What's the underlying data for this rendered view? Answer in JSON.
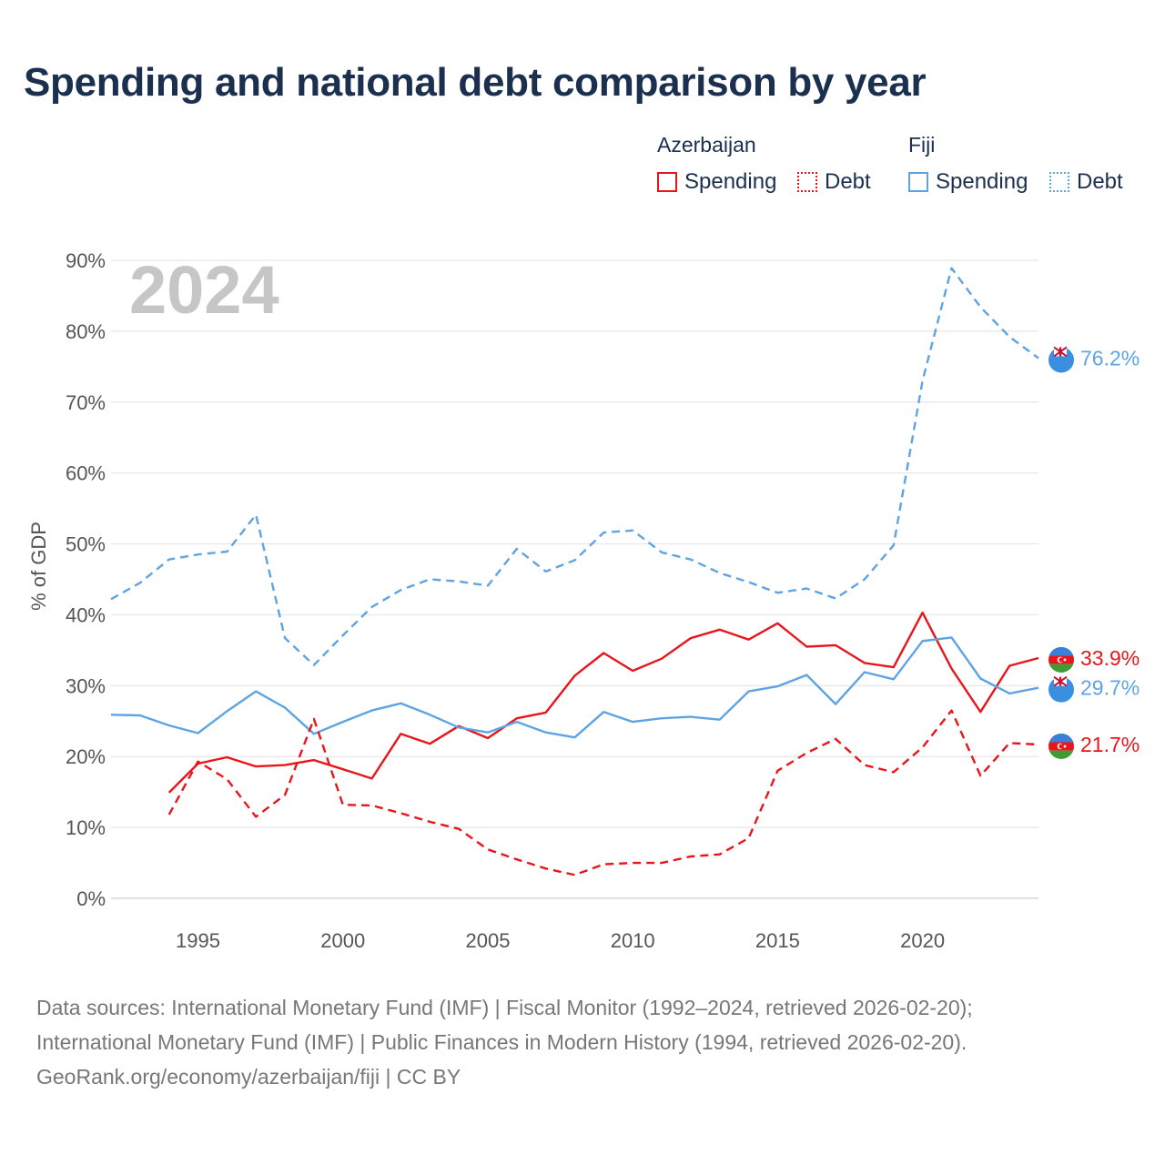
{
  "chart_data": {
    "type": "line",
    "title": "Spending and national debt comparison by year",
    "year_label": "2024",
    "ylabel": "% of GDP",
    "xlabel": "",
    "xlim": [
      1992,
      2024
    ],
    "ylim": [
      0,
      90
    ],
    "x_ticks": [
      1995,
      2000,
      2005,
      2010,
      2015,
      2020
    ],
    "y_ticks": [
      0,
      10,
      20,
      30,
      40,
      50,
      60,
      70,
      80,
      90
    ],
    "y_tick_labels": [
      "0%",
      "10%",
      "20%",
      "30%",
      "40%",
      "50%",
      "60%",
      "70%",
      "80%",
      "90%"
    ],
    "grid": true,
    "legend_groups": [
      {
        "country": "Azerbaijan",
        "color": "#e8161b",
        "items": [
          "Spending",
          "Debt"
        ]
      },
      {
        "country": "Fiji",
        "color": "#5ea4e2",
        "items": [
          "Spending",
          "Debt"
        ]
      }
    ],
    "series": [
      {
        "name": "Fiji Debt",
        "country": "Fiji",
        "measure": "Debt",
        "style": "dashed",
        "color": "#5ea4e2",
        "x": [
          1992,
          1993,
          1994,
          1995,
          1996,
          1997,
          1998,
          1999,
          2000,
          2001,
          2002,
          2003,
          2004,
          2005,
          2006,
          2007,
          2008,
          2009,
          2010,
          2011,
          2012,
          2013,
          2014,
          2015,
          2016,
          2017,
          2018,
          2019,
          2020,
          2021,
          2022,
          2023,
          2024
        ],
        "values": [
          42.2,
          44.5,
          47.8,
          48.5,
          48.9,
          54.1,
          36.7,
          32.9,
          37.1,
          41.1,
          43.5,
          45.0,
          44.7,
          44.1,
          49.3,
          46.1,
          47.7,
          51.6,
          51.9,
          48.8,
          47.8,
          45.9,
          44.6,
          43.1,
          43.7,
          42.3,
          45.0,
          49.8,
          73.0,
          88.9,
          83.4,
          79.2,
          76.2
        ],
        "end_label": "76.2%"
      },
      {
        "name": "Azerbaijan Spending",
        "country": "Azerbaijan",
        "measure": "Spending",
        "style": "solid",
        "color": "#e8161b",
        "x": [
          1994,
          1995,
          1996,
          1997,
          1998,
          1999,
          2000,
          2001,
          2002,
          2003,
          2004,
          2005,
          2006,
          2007,
          2008,
          2009,
          2010,
          2011,
          2012,
          2013,
          2014,
          2015,
          2016,
          2017,
          2018,
          2019,
          2020,
          2021,
          2022,
          2023,
          2024
        ],
        "values": [
          14.9,
          19.0,
          19.9,
          18.6,
          18.8,
          19.5,
          18.2,
          16.9,
          23.2,
          21.8,
          24.3,
          22.6,
          25.4,
          26.2,
          31.4,
          34.6,
          32.1,
          33.8,
          36.7,
          37.9,
          36.5,
          38.8,
          35.5,
          35.7,
          33.2,
          32.6,
          40.3,
          32.4,
          26.3,
          32.8,
          33.9
        ],
        "end_label": "33.9%"
      },
      {
        "name": "Fiji Spending",
        "country": "Fiji",
        "measure": "Spending",
        "style": "solid",
        "color": "#5ea4e2",
        "x": [
          1992,
          1993,
          1994,
          1995,
          1996,
          1997,
          1998,
          1999,
          2000,
          2001,
          2002,
          2003,
          2004,
          2005,
          2006,
          2007,
          2008,
          2009,
          2010,
          2011,
          2012,
          2013,
          2014,
          2015,
          2016,
          2017,
          2018,
          2019,
          2020,
          2021,
          2022,
          2023,
          2024
        ],
        "values": [
          25.9,
          25.8,
          24.4,
          23.3,
          26.4,
          29.2,
          26.9,
          23.2,
          24.9,
          26.5,
          27.5,
          25.9,
          24.1,
          23.4,
          24.9,
          23.4,
          22.7,
          26.3,
          24.9,
          25.4,
          25.6,
          25.2,
          29.2,
          29.9,
          31.5,
          27.4,
          31.9,
          30.9,
          36.3,
          36.8,
          31.0,
          28.9,
          29.7
        ],
        "end_label": "29.7%"
      },
      {
        "name": "Azerbaijan Debt",
        "country": "Azerbaijan",
        "measure": "Debt",
        "style": "dashed",
        "color": "#e8161b",
        "x": [
          1994,
          1995,
          1996,
          1997,
          1998,
          1999,
          2000,
          2001,
          2002,
          2003,
          2004,
          2005,
          2006,
          2007,
          2008,
          2009,
          2010,
          2011,
          2012,
          2013,
          2014,
          2015,
          2016,
          2017,
          2018,
          2019,
          2020,
          2021,
          2022,
          2023,
          2024
        ],
        "values": [
          11.8,
          19.3,
          16.8,
          11.5,
          14.6,
          25.3,
          13.2,
          13.1,
          12.0,
          10.8,
          9.8,
          6.9,
          5.5,
          4.2,
          3.3,
          4.8,
          5.0,
          5.0,
          5.9,
          6.2,
          8.5,
          18.0,
          20.5,
          22.5,
          18.8,
          17.8,
          21.3,
          26.5,
          17.3,
          21.9,
          21.7
        ],
        "end_label": "21.7%"
      }
    ]
  },
  "footer": {
    "line1": "Data sources: International Monetary Fund (IMF) | Fiscal Monitor (1992–2024, retrieved 2026-02-20);",
    "line2": "International Monetary Fund (IMF) | Public Finances in Modern History (1994, retrieved 2026-02-20).",
    "line3": "GeoRank.org/economy/azerbaijan/fiji | CC BY"
  }
}
